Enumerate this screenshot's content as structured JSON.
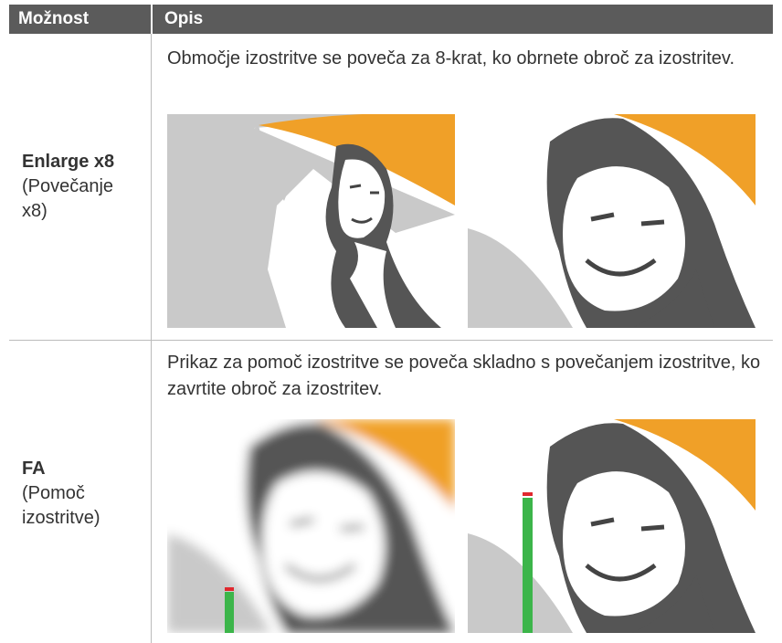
{
  "header": {
    "option": "Možnost",
    "description": "Opis"
  },
  "rows": [
    {
      "option": "Enlarge x8",
      "option_note": "(Povečanje x8)",
      "description": "Območje izostritve se poveča za 8-krat, ko obrnete obroč za izostritev."
    },
    {
      "option": "FA",
      "option_note": "(Pomoč izostritve)",
      "description": "Prikaz za pomoč izostritve se poveča skladno s povečanjem izostritve, ko zavrtite obroč za izostritev."
    }
  ]
}
